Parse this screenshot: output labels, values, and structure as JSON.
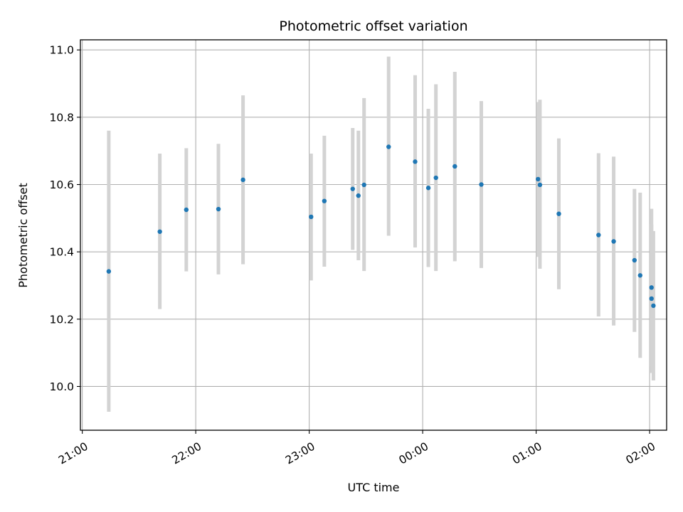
{
  "chart_data": {
    "type": "scatter",
    "title": "Photometric offset variation",
    "xlabel": "UTC time",
    "ylabel": "Photometric offset",
    "x_ticks": [
      "21:00",
      "22:00",
      "23:00",
      "00:00",
      "01:00",
      "02:00"
    ],
    "y_ticks": [
      "10.0",
      "10.2",
      "10.4",
      "10.6",
      "10.8",
      "11.0"
    ],
    "xlim": [
      "20:59",
      "02:09"
    ],
    "ylim": [
      9.87,
      11.03
    ],
    "grid": true,
    "colors": {
      "point": "#1f77b4",
      "errorbar": "#d3d3d3",
      "grid": "#b0b0b0"
    },
    "points": [
      {
        "x": "21:14",
        "y": 10.342,
        "err_low": 9.925,
        "err_high": 10.76
      },
      {
        "x": "21:41",
        "y": 10.46,
        "err_low": 10.23,
        "err_high": 10.692
      },
      {
        "x": "21:55",
        "y": 10.525,
        "err_low": 10.342,
        "err_high": 10.708
      },
      {
        "x": "22:12",
        "y": 10.527,
        "err_low": 10.333,
        "err_high": 10.721
      },
      {
        "x": "22:25",
        "y": 10.614,
        "err_low": 10.363,
        "err_high": 10.865
      },
      {
        "x": "23:01",
        "y": 10.504,
        "err_low": 10.315,
        "err_high": 10.692
      },
      {
        "x": "23:08",
        "y": 10.551,
        "err_low": 10.356,
        "err_high": 10.745
      },
      {
        "x": "23:23",
        "y": 10.587,
        "err_low": 10.406,
        "err_high": 10.768
      },
      {
        "x": "23:26",
        "y": 10.567,
        "err_low": 10.375,
        "err_high": 10.76
      },
      {
        "x": "23:29",
        "y": 10.599,
        "err_low": 10.343,
        "err_high": 10.857
      },
      {
        "x": "23:42",
        "y": 10.712,
        "err_low": 10.448,
        "err_high": 10.98
      },
      {
        "x": "23:56",
        "y": 10.668,
        "err_low": 10.413,
        "err_high": 10.925
      },
      {
        "x": "00:03",
        "y": 10.59,
        "err_low": 10.355,
        "err_high": 10.825
      },
      {
        "x": "00:07",
        "y": 10.62,
        "err_low": 10.343,
        "err_high": 10.898
      },
      {
        "x": "00:17",
        "y": 10.654,
        "err_low": 10.372,
        "err_high": 10.935
      },
      {
        "x": "00:31",
        "y": 10.6,
        "err_low": 10.352,
        "err_high": 10.848
      },
      {
        "x": "01:01",
        "y": 10.616,
        "err_low": 10.385,
        "err_high": 10.845
      },
      {
        "x": "01:02",
        "y": 10.599,
        "err_low": 10.35,
        "err_high": 10.852
      },
      {
        "x": "01:12",
        "y": 10.513,
        "err_low": 10.289,
        "err_high": 10.737
      },
      {
        "x": "01:33",
        "y": 10.45,
        "err_low": 10.208,
        "err_high": 10.693
      },
      {
        "x": "01:41",
        "y": 10.431,
        "err_low": 10.181,
        "err_high": 10.683
      },
      {
        "x": "01:52",
        "y": 10.375,
        "err_low": 10.162,
        "err_high": 10.587
      },
      {
        "x": "01:55",
        "y": 10.33,
        "err_low": 10.085,
        "err_high": 10.576
      },
      {
        "x": "02:01",
        "y": 10.294,
        "err_low": 10.06,
        "err_high": 10.528
      },
      {
        "x": "02:01",
        "y": 10.261,
        "err_low": 10.04,
        "err_high": 10.482
      },
      {
        "x": "02:02",
        "y": 10.24,
        "err_low": 10.018,
        "err_high": 10.462
      }
    ]
  }
}
